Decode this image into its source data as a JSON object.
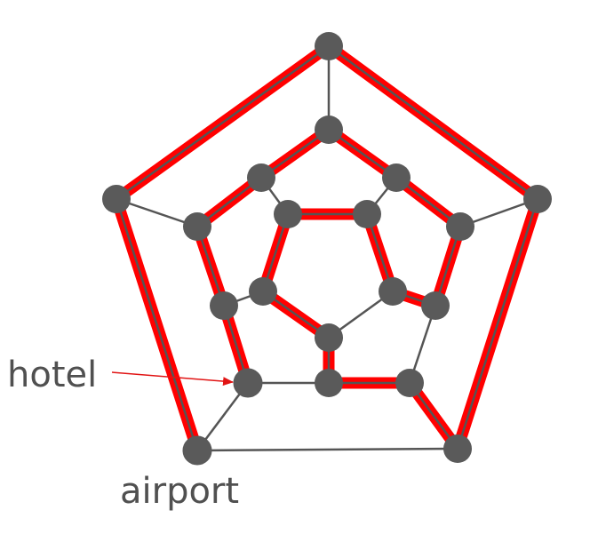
{
  "labels": {
    "hotel": "hotel",
    "airport": "airport"
  },
  "colors": {
    "path": "#ff0000",
    "edge": "#555555",
    "node": "#5a5a5a",
    "hotel_node": "#2f7fd6",
    "airport_node": "#ff0000",
    "label": "#505050"
  }
}
